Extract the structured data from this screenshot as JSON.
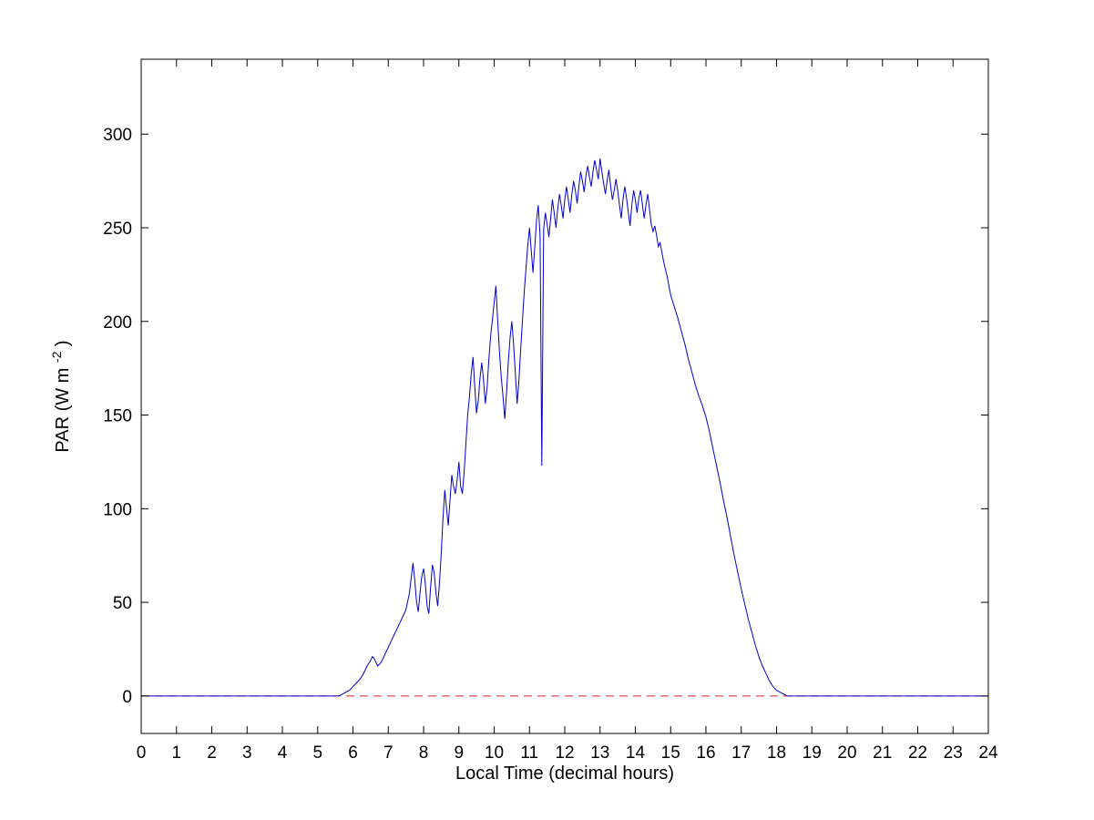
{
  "figure": {
    "background": "#ffffff",
    "axes_color": "#000000",
    "text_color": "#000000"
  },
  "chart_data": {
    "type": "line",
    "title": "",
    "xlabel": "Local Time (decimal hours)",
    "ylabel": "PAR (W m-2)",
    "ylabel_parts": {
      "prefix": "PAR (W m",
      "superscript": "-2",
      "suffix": ")"
    },
    "xlim": [
      0,
      24
    ],
    "ylim": [
      -20,
      340
    ],
    "x_ticks": [
      0,
      1,
      2,
      3,
      4,
      5,
      6,
      7,
      8,
      9,
      10,
      11,
      12,
      13,
      14,
      15,
      16,
      17,
      18,
      19,
      20,
      21,
      22,
      23,
      24
    ],
    "y_ticks": [
      0,
      50,
      100,
      150,
      200,
      250,
      300
    ],
    "grid": false,
    "legend_position": "none",
    "series": [
      {
        "name": "zero-reference",
        "color": "#dd2222",
        "style": "dashed",
        "points": [
          [
            0,
            0
          ],
          [
            24,
            0
          ]
        ]
      },
      {
        "name": "par-series",
        "color": "#0000cc",
        "style": "solid",
        "points": [
          [
            0,
            0
          ],
          [
            0.5,
            0
          ],
          [
            1,
            0
          ],
          [
            1.5,
            0
          ],
          [
            2,
            0
          ],
          [
            2.5,
            0
          ],
          [
            3,
            0
          ],
          [
            3.5,
            0
          ],
          [
            4,
            0
          ],
          [
            4.5,
            0
          ],
          [
            5,
            0
          ],
          [
            5.3,
            0
          ],
          [
            5.6,
            0
          ],
          [
            5.7,
            1
          ],
          [
            5.8,
            2
          ],
          [
            5.9,
            3
          ],
          [
            6.0,
            5
          ],
          [
            6.1,
            7
          ],
          [
            6.2,
            9
          ],
          [
            6.3,
            12
          ],
          [
            6.4,
            16
          ],
          [
            6.5,
            19
          ],
          [
            6.55,
            21
          ],
          [
            6.6,
            20
          ],
          [
            6.7,
            16
          ],
          [
            6.8,
            18
          ],
          [
            6.9,
            22
          ],
          [
            7.0,
            26
          ],
          [
            7.1,
            30
          ],
          [
            7.2,
            34
          ],
          [
            7.3,
            38
          ],
          [
            7.4,
            42
          ],
          [
            7.5,
            46
          ],
          [
            7.6,
            55
          ],
          [
            7.65,
            63
          ],
          [
            7.7,
            71
          ],
          [
            7.75,
            62
          ],
          [
            7.8,
            50
          ],
          [
            7.85,
            45
          ],
          [
            7.9,
            55
          ],
          [
            7.95,
            64
          ],
          [
            8.0,
            68
          ],
          [
            8.05,
            60
          ],
          [
            8.1,
            48
          ],
          [
            8.15,
            44
          ],
          [
            8.2,
            58
          ],
          [
            8.25,
            70
          ],
          [
            8.3,
            66
          ],
          [
            8.35,
            55
          ],
          [
            8.4,
            48
          ],
          [
            8.45,
            60
          ],
          [
            8.5,
            76
          ],
          [
            8.55,
            95
          ],
          [
            8.6,
            110
          ],
          [
            8.65,
            100
          ],
          [
            8.7,
            91
          ],
          [
            8.75,
            105
          ],
          [
            8.8,
            118
          ],
          [
            8.85,
            112
          ],
          [
            8.9,
            108
          ],
          [
            8.95,
            115
          ],
          [
            9.0,
            125
          ],
          [
            9.05,
            112
          ],
          [
            9.1,
            108
          ],
          [
            9.15,
            120
          ],
          [
            9.2,
            135
          ],
          [
            9.25,
            150
          ],
          [
            9.3,
            160
          ],
          [
            9.35,
            172
          ],
          [
            9.4,
            181
          ],
          [
            9.45,
            165
          ],
          [
            9.5,
            151
          ],
          [
            9.55,
            158
          ],
          [
            9.6,
            170
          ],
          [
            9.65,
            178
          ],
          [
            9.7,
            168
          ],
          [
            9.75,
            156
          ],
          [
            9.8,
            165
          ],
          [
            9.85,
            180
          ],
          [
            9.9,
            192
          ],
          [
            9.95,
            201
          ],
          [
            10.0,
            210
          ],
          [
            10.05,
            219
          ],
          [
            10.1,
            200
          ],
          [
            10.15,
            184
          ],
          [
            10.2,
            170
          ],
          [
            10.25,
            160
          ],
          [
            10.3,
            148
          ],
          [
            10.35,
            162
          ],
          [
            10.4,
            178
          ],
          [
            10.45,
            191
          ],
          [
            10.5,
            200
          ],
          [
            10.55,
            188
          ],
          [
            10.6,
            172
          ],
          [
            10.65,
            156
          ],
          [
            10.7,
            168
          ],
          [
            10.75,
            185
          ],
          [
            10.8,
            200
          ],
          [
            10.85,
            215
          ],
          [
            10.9,
            228
          ],
          [
            10.95,
            240
          ],
          [
            11.0,
            250
          ],
          [
            11.05,
            238
          ],
          [
            11.1,
            226
          ],
          [
            11.15,
            240
          ],
          [
            11.2,
            254
          ],
          [
            11.25,
            262
          ],
          [
            11.3,
            246
          ],
          [
            11.35,
            123
          ],
          [
            11.4,
            249
          ],
          [
            11.45,
            258
          ],
          [
            11.5,
            252
          ],
          [
            11.55,
            245
          ],
          [
            11.6,
            255
          ],
          [
            11.65,
            265
          ],
          [
            11.7,
            258
          ],
          [
            11.75,
            250
          ],
          [
            11.8,
            260
          ],
          [
            11.85,
            268
          ],
          [
            11.9,
            262
          ],
          [
            11.95,
            255
          ],
          [
            12.0,
            265
          ],
          [
            12.05,
            272
          ],
          [
            12.1,
            265
          ],
          [
            12.15,
            258
          ],
          [
            12.2,
            268
          ],
          [
            12.25,
            275
          ],
          [
            12.3,
            270
          ],
          [
            12.35,
            263
          ],
          [
            12.4,
            272
          ],
          [
            12.45,
            280
          ],
          [
            12.5,
            275
          ],
          [
            12.55,
            269
          ],
          [
            12.6,
            278
          ],
          [
            12.65,
            283
          ],
          [
            12.7,
            277
          ],
          [
            12.75,
            272
          ],
          [
            12.8,
            280
          ],
          [
            12.85,
            286
          ],
          [
            12.9,
            281
          ],
          [
            12.95,
            276
          ],
          [
            13.0,
            287
          ],
          [
            13.05,
            280
          ],
          [
            13.1,
            274
          ],
          [
            13.15,
            268
          ],
          [
            13.2,
            275
          ],
          [
            13.25,
            281
          ],
          [
            13.3,
            272
          ],
          [
            13.35,
            265
          ],
          [
            13.4,
            270
          ],
          [
            13.45,
            276
          ],
          [
            13.5,
            270
          ],
          [
            13.55,
            262
          ],
          [
            13.6,
            255
          ],
          [
            13.65,
            265
          ],
          [
            13.7,
            272
          ],
          [
            13.75,
            266
          ],
          [
            13.8,
            258
          ],
          [
            13.85,
            251
          ],
          [
            13.9,
            262
          ],
          [
            13.95,
            270
          ],
          [
            14.0,
            265
          ],
          [
            14.05,
            258
          ],
          [
            14.1,
            266
          ],
          [
            14.15,
            270
          ],
          [
            14.2,
            262
          ],
          [
            14.25,
            255
          ],
          [
            14.3,
            262
          ],
          [
            14.35,
            268
          ],
          [
            14.4,
            260
          ],
          [
            14.45,
            252
          ],
          [
            14.5,
            248
          ],
          [
            14.55,
            251
          ],
          [
            14.6,
            246
          ],
          [
            14.65,
            240
          ],
          [
            14.7,
            242
          ],
          [
            14.75,
            237
          ],
          [
            14.8,
            232
          ],
          [
            14.85,
            228
          ],
          [
            14.9,
            224
          ],
          [
            14.95,
            219
          ],
          [
            15.0,
            214
          ],
          [
            15.1,
            208
          ],
          [
            15.2,
            202
          ],
          [
            15.3,
            195
          ],
          [
            15.4,
            188
          ],
          [
            15.5,
            180
          ],
          [
            15.6,
            173
          ],
          [
            15.7,
            166
          ],
          [
            15.8,
            160
          ],
          [
            15.9,
            155
          ],
          [
            16.0,
            149
          ],
          [
            16.1,
            141
          ],
          [
            16.2,
            132
          ],
          [
            16.3,
            123
          ],
          [
            16.4,
            114
          ],
          [
            16.5,
            104
          ],
          [
            16.6,
            95
          ],
          [
            16.7,
            85
          ],
          [
            16.8,
            75
          ],
          [
            16.9,
            66
          ],
          [
            17.0,
            57
          ],
          [
            17.1,
            49
          ],
          [
            17.2,
            41
          ],
          [
            17.3,
            34
          ],
          [
            17.4,
            27
          ],
          [
            17.5,
            21
          ],
          [
            17.6,
            16
          ],
          [
            17.7,
            12
          ],
          [
            17.8,
            8
          ],
          [
            17.9,
            5
          ],
          [
            18.0,
            3
          ],
          [
            18.1,
            2
          ],
          [
            18.2,
            1
          ],
          [
            18.3,
            0
          ],
          [
            18.5,
            0
          ],
          [
            19,
            0
          ],
          [
            19.5,
            0
          ],
          [
            20,
            0
          ],
          [
            20.5,
            0
          ],
          [
            21,
            0
          ],
          [
            21.5,
            0
          ],
          [
            22,
            0
          ],
          [
            22.5,
            0
          ],
          [
            23,
            0
          ],
          [
            23.5,
            0
          ],
          [
            24,
            0
          ]
        ]
      }
    ]
  }
}
